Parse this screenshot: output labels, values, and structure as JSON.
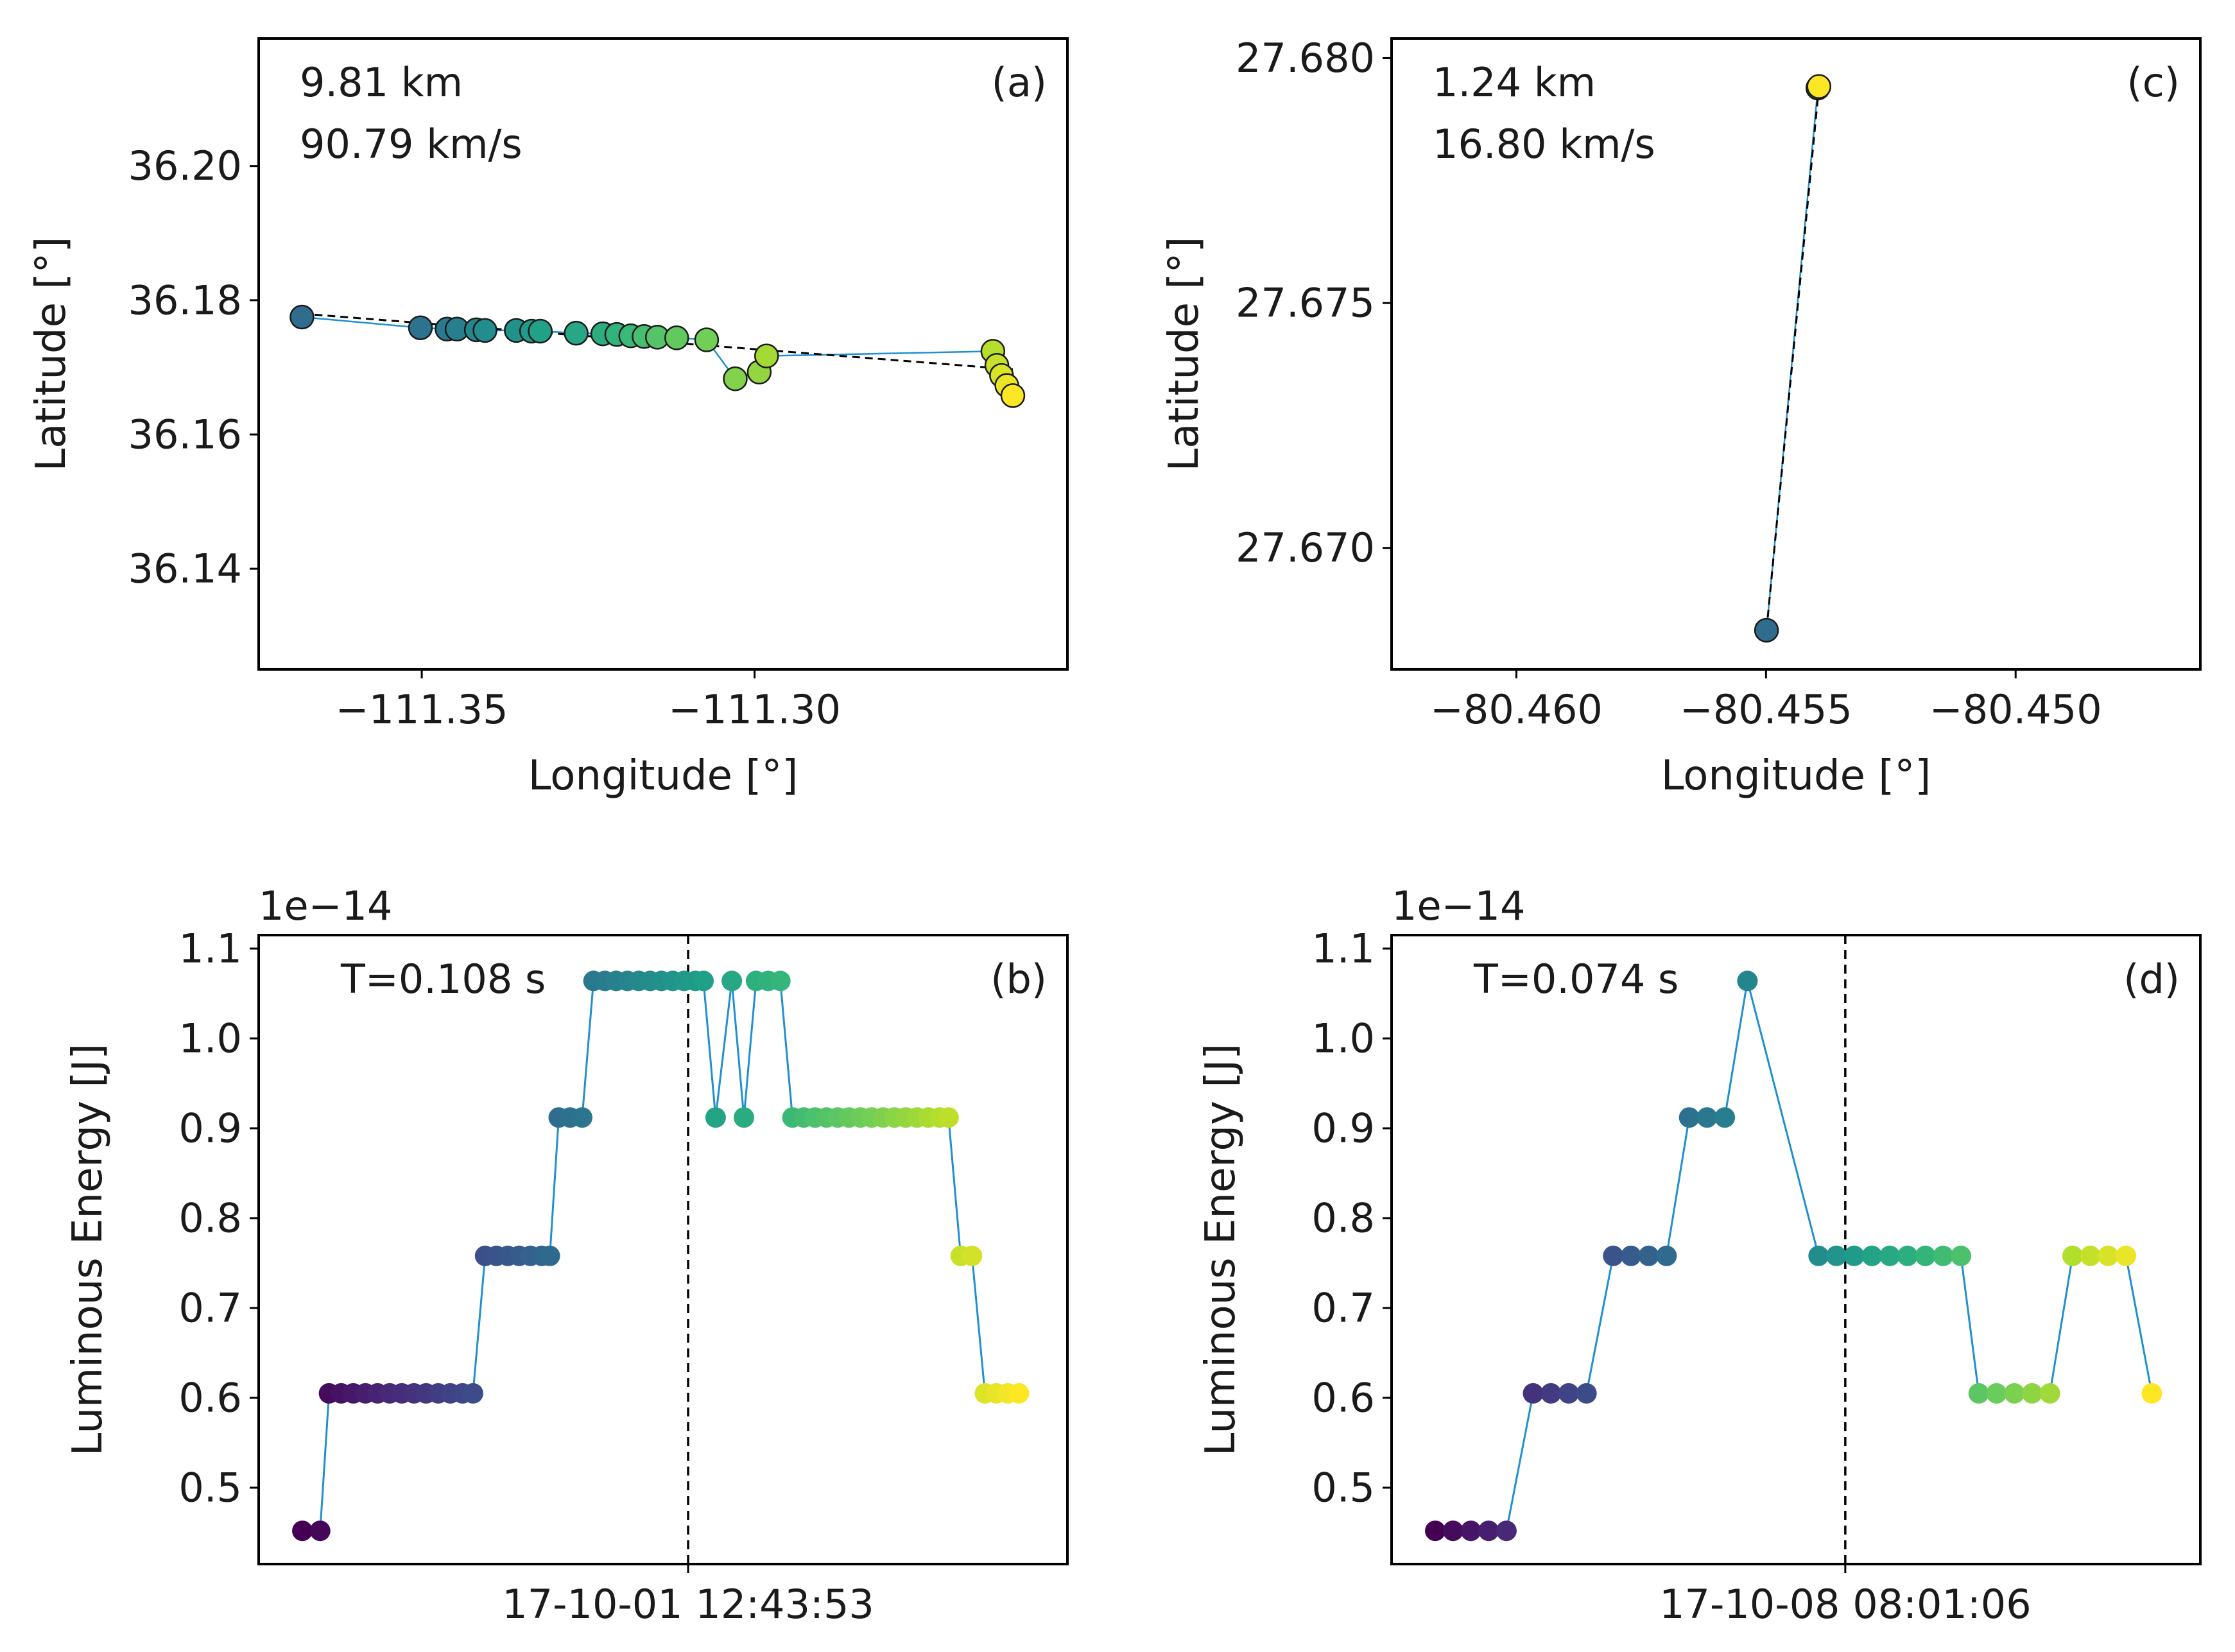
{
  "chart_data": [
    {
      "id": "a",
      "type": "scatter",
      "panel_label": "(a)",
      "xlabel": "Longitude [°]",
      "ylabel": "Latitude [°]",
      "xlim": [
        -111.3745,
        -111.253
      ],
      "ylim": [
        36.125,
        36.219
      ],
      "xticks": [
        -111.35,
        -111.3
      ],
      "xtick_labels": [
        "−111.35",
        "−111.30"
      ],
      "yticks": [
        36.14,
        36.16,
        36.18,
        36.2
      ],
      "ytick_labels": [
        "36.14",
        "36.16",
        "36.18",
        "36.20"
      ],
      "annotations": [
        "9.81 km",
        "90.79 km/s"
      ],
      "colormap": "viridis",
      "points": [
        [
          -111.368,
          36.1775
        ],
        [
          -111.3502,
          36.1759
        ],
        [
          -111.3462,
          36.1757
        ],
        [
          -111.3447,
          36.1757
        ],
        [
          -111.3418,
          36.1756
        ],
        [
          -111.3405,
          36.1755
        ],
        [
          -111.3358,
          36.1755
        ],
        [
          -111.3335,
          36.1754
        ],
        [
          -111.3322,
          36.1754
        ],
        [
          -111.3268,
          36.1751
        ],
        [
          -111.3228,
          36.175
        ],
        [
          -111.3207,
          36.1749
        ],
        [
          -111.3186,
          36.1747
        ],
        [
          -111.3166,
          36.1746
        ],
        [
          -111.3146,
          36.1745
        ],
        [
          -111.3117,
          36.1744
        ],
        [
          -111.3072,
          36.1741
        ],
        [
          -111.3029,
          36.1683
        ],
        [
          -111.2993,
          36.1693
        ],
        [
          -111.2982,
          36.1717
        ],
        [
          -111.2642,
          36.1724
        ],
        [
          -111.2636,
          36.1703
        ],
        [
          -111.2629,
          36.1688
        ],
        [
          -111.2621,
          36.1673
        ],
        [
          -111.2612,
          36.1658
        ]
      ],
      "fit_line": [
        [
          -111.368,
          36.178
        ],
        [
          -111.2612,
          36.1697
        ]
      ]
    },
    {
      "id": "c",
      "type": "scatter",
      "panel_label": "(c)",
      "xlabel": "Longitude [°]",
      "ylabel": "Latitude [°]",
      "xlim": [
        -80.4625,
        -80.4463
      ],
      "ylim": [
        27.66752,
        27.6804
      ],
      "xticks": [
        -80.46,
        -80.455,
        -80.45
      ],
      "xtick_labels": [
        "−80.460",
        "−80.455",
        "−80.450"
      ],
      "yticks": [
        27.67,
        27.675,
        27.68
      ],
      "ytick_labels": [
        "27.670",
        "27.675",
        "27.680"
      ],
      "annotations": [
        "1.24 km",
        "16.80 km/s"
      ],
      "colormap": "viridis",
      "points": [
        [
          -80.45499,
          27.66832
        ],
        [
          -80.45396,
          27.67939
        ],
        [
          -80.45394,
          27.67942
        ]
      ],
      "fit_line": [
        [
          -80.45499,
          27.66832
        ],
        [
          -80.45394,
          27.67942
        ]
      ]
    },
    {
      "id": "b",
      "type": "line",
      "panel_label": "(b)",
      "ylabel": "Luminous Energy [J]",
      "offset_text": "1e−14",
      "ylim": [
        0.415,
        1.115
      ],
      "yticks": [
        0.5,
        0.6,
        0.7,
        0.8,
        0.9,
        1.0,
        1.1
      ],
      "ytick_labels": [
        "0.5",
        "0.6",
        "0.7",
        "0.8",
        "0.9",
        "1.0",
        "1.1"
      ],
      "xlim": [
        0.0,
        1.0
      ],
      "xticks": [
        0.531
      ],
      "xtick_labels": [
        "17-10-01 12:43:53"
      ],
      "event_marker_x": 0.531,
      "annotations": [
        "T=0.108 s"
      ],
      "colormap": "viridis",
      "series": [
        {
          "x": 0.054,
          "y": 0.452
        },
        {
          "x": 0.076,
          "y": 0.452
        },
        {
          "x": 0.087,
          "y": 0.605
        },
        {
          "x": 0.102,
          "y": 0.605
        },
        {
          "x": 0.117,
          "y": 0.605
        },
        {
          "x": 0.132,
          "y": 0.605
        },
        {
          "x": 0.147,
          "y": 0.605
        },
        {
          "x": 0.162,
          "y": 0.605
        },
        {
          "x": 0.177,
          "y": 0.605
        },
        {
          "x": 0.192,
          "y": 0.605
        },
        {
          "x": 0.207,
          "y": 0.605
        },
        {
          "x": 0.222,
          "y": 0.605
        },
        {
          "x": 0.237,
          "y": 0.605
        },
        {
          "x": 0.252,
          "y": 0.605
        },
        {
          "x": 0.265,
          "y": 0.605
        },
        {
          "x": 0.28,
          "y": 0.758
        },
        {
          "x": 0.294,
          "y": 0.758
        },
        {
          "x": 0.308,
          "y": 0.758
        },
        {
          "x": 0.322,
          "y": 0.758
        },
        {
          "x": 0.336,
          "y": 0.758
        },
        {
          "x": 0.35,
          "y": 0.758
        },
        {
          "x": 0.36,
          "y": 0.758
        },
        {
          "x": 0.371,
          "y": 0.912
        },
        {
          "x": 0.385,
          "y": 0.912
        },
        {
          "x": 0.4,
          "y": 0.912
        },
        {
          "x": 0.414,
          "y": 1.064
        },
        {
          "x": 0.428,
          "y": 1.064
        },
        {
          "x": 0.442,
          "y": 1.064
        },
        {
          "x": 0.456,
          "y": 1.064
        },
        {
          "x": 0.47,
          "y": 1.064
        },
        {
          "x": 0.484,
          "y": 1.064
        },
        {
          "x": 0.498,
          "y": 1.064
        },
        {
          "x": 0.512,
          "y": 1.064
        },
        {
          "x": 0.526,
          "y": 1.064
        },
        {
          "x": 0.54,
          "y": 1.064
        },
        {
          "x": 0.55,
          "y": 1.064
        },
        {
          "x": 0.565,
          "y": 0.912
        },
        {
          "x": 0.585,
          "y": 1.064
        },
        {
          "x": 0.6,
          "y": 0.912
        },
        {
          "x": 0.615,
          "y": 1.064
        },
        {
          "x": 0.63,
          "y": 1.064
        },
        {
          "x": 0.645,
          "y": 1.064
        },
        {
          "x": 0.66,
          "y": 0.912
        },
        {
          "x": 0.674,
          "y": 0.912
        },
        {
          "x": 0.688,
          "y": 0.912
        },
        {
          "x": 0.702,
          "y": 0.912
        },
        {
          "x": 0.716,
          "y": 0.912
        },
        {
          "x": 0.73,
          "y": 0.912
        },
        {
          "x": 0.744,
          "y": 0.912
        },
        {
          "x": 0.758,
          "y": 0.912
        },
        {
          "x": 0.772,
          "y": 0.912
        },
        {
          "x": 0.786,
          "y": 0.912
        },
        {
          "x": 0.8,
          "y": 0.912
        },
        {
          "x": 0.814,
          "y": 0.912
        },
        {
          "x": 0.828,
          "y": 0.912
        },
        {
          "x": 0.842,
          "y": 0.912
        },
        {
          "x": 0.853,
          "y": 0.912
        },
        {
          "x": 0.868,
          "y": 0.758
        },
        {
          "x": 0.882,
          "y": 0.758
        },
        {
          "x": 0.898,
          "y": 0.605
        },
        {
          "x": 0.912,
          "y": 0.605
        },
        {
          "x": 0.926,
          "y": 0.605
        },
        {
          "x": 0.94,
          "y": 0.605
        }
      ]
    },
    {
      "id": "d",
      "type": "line",
      "panel_label": "(d)",
      "ylabel": "Luminous Energy [J]",
      "offset_text": "1e−14",
      "ylim": [
        0.415,
        1.115
      ],
      "yticks": [
        0.5,
        0.6,
        0.7,
        0.8,
        0.9,
        1.0,
        1.1
      ],
      "ytick_labels": [
        "0.5",
        "0.6",
        "0.7",
        "0.8",
        "0.9",
        "1.0",
        "1.1"
      ],
      "xlim": [
        0.0,
        1.0
      ],
      "xticks": [
        0.561
      ],
      "xtick_labels": [
        "17-10-08 08:01:06"
      ],
      "event_marker_x": 0.561,
      "annotations": [
        "T=0.074 s"
      ],
      "colormap": "viridis",
      "series": [
        {
          "x": 0.054,
          "y": 0.452
        },
        {
          "x": 0.076,
          "y": 0.452
        },
        {
          "x": 0.098,
          "y": 0.452
        },
        {
          "x": 0.12,
          "y": 0.452
        },
        {
          "x": 0.142,
          "y": 0.452
        },
        {
          "x": 0.175,
          "y": 0.605
        },
        {
          "x": 0.197,
          "y": 0.605
        },
        {
          "x": 0.219,
          "y": 0.605
        },
        {
          "x": 0.241,
          "y": 0.605
        },
        {
          "x": 0.274,
          "y": 0.758
        },
        {
          "x": 0.296,
          "y": 0.758
        },
        {
          "x": 0.318,
          "y": 0.758
        },
        {
          "x": 0.34,
          "y": 0.758
        },
        {
          "x": 0.368,
          "y": 0.912
        },
        {
          "x": 0.39,
          "y": 0.912
        },
        {
          "x": 0.412,
          "y": 0.912
        },
        {
          "x": 0.44,
          "y": 1.064
        },
        {
          "x": 0.528,
          "y": 0.758
        },
        {
          "x": 0.55,
          "y": 0.758
        },
        {
          "x": 0.572,
          "y": 0.758
        },
        {
          "x": 0.594,
          "y": 0.758
        },
        {
          "x": 0.616,
          "y": 0.758
        },
        {
          "x": 0.638,
          "y": 0.758
        },
        {
          "x": 0.66,
          "y": 0.758
        },
        {
          "x": 0.682,
          "y": 0.758
        },
        {
          "x": 0.704,
          "y": 0.758
        },
        {
          "x": 0.726,
          "y": 0.605
        },
        {
          "x": 0.748,
          "y": 0.605
        },
        {
          "x": 0.77,
          "y": 0.605
        },
        {
          "x": 0.792,
          "y": 0.605
        },
        {
          "x": 0.814,
          "y": 0.605
        },
        {
          "x": 0.842,
          "y": 0.758
        },
        {
          "x": 0.864,
          "y": 0.758
        },
        {
          "x": 0.886,
          "y": 0.758
        },
        {
          "x": 0.908,
          "y": 0.758
        },
        {
          "x": 0.94,
          "y": 0.605
        }
      ]
    }
  ]
}
